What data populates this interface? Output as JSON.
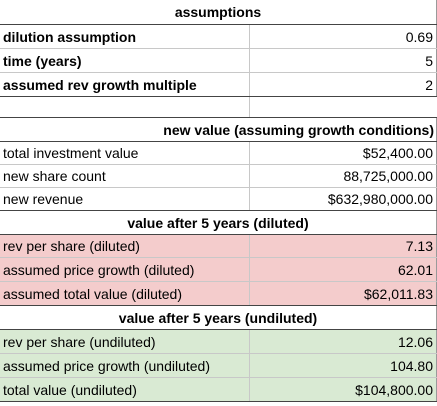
{
  "assumptions": {
    "header": "assumptions",
    "rows": [
      {
        "label": "dilution assumption",
        "value": "0.69"
      },
      {
        "label": "time (years)",
        "value": "5"
      },
      {
        "label": "assumed rev growth multiple",
        "value": "2"
      }
    ]
  },
  "new_value": {
    "header": "new value (assuming growth conditions)",
    "rows": [
      {
        "label": "total investment value",
        "value": "$52,400.00"
      },
      {
        "label": "new share count",
        "value": "88,725,000.00"
      },
      {
        "label": "new revenue",
        "value": "$632,980,000.00"
      }
    ]
  },
  "diluted": {
    "header": "value after 5 years (diluted)",
    "rows": [
      {
        "label": "rev per share (diluted)",
        "value": "7.13"
      },
      {
        "label": "assumed price growth (diluted)",
        "value": "62.01"
      },
      {
        "label": "assumed total value (diluted)",
        "value": "$62,011.83"
      }
    ]
  },
  "undiluted": {
    "header": "value after 5 years (undiluted)",
    "rows": [
      {
        "label": "rev per share (undiluted)",
        "value": "12.06"
      },
      {
        "label": "assumed price growth (undiluted)",
        "value": "104.80"
      },
      {
        "label": "total value (undiluted)",
        "value": "$104,800.00"
      }
    ]
  }
}
